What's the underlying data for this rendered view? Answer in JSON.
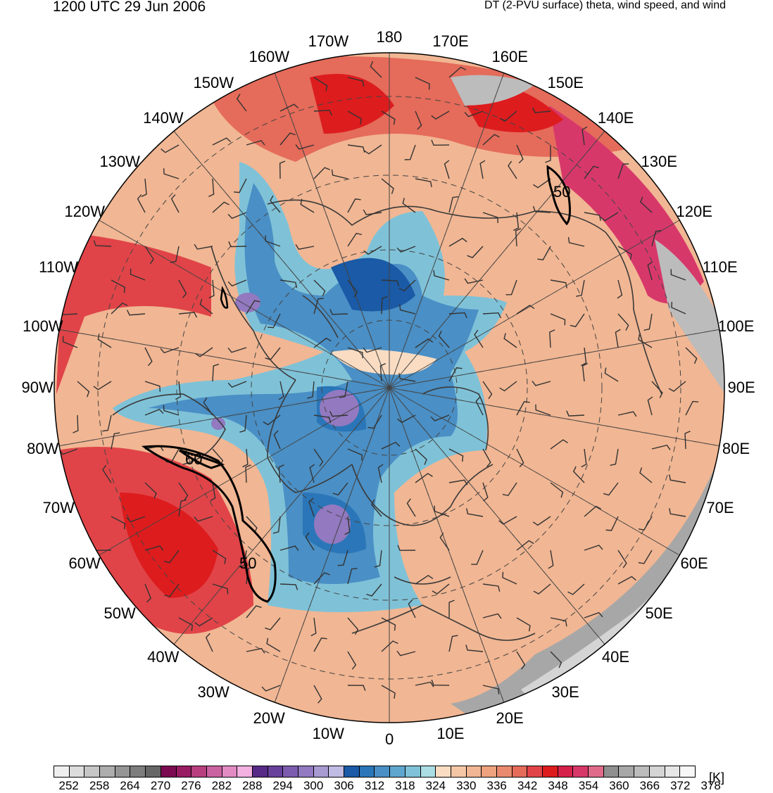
{
  "header": {
    "valid_time": "1200 UTC 29 Jun 2006",
    "field_title": "DT (2-PVU surface) theta, wind speed, and wind"
  },
  "map": {
    "projection": "north polar stereographic",
    "longitude_labels": [
      "180",
      "170E",
      "160E",
      "150E",
      "140E",
      "130E",
      "120E",
      "110E",
      "100E",
      "90E",
      "80E",
      "70E",
      "60E",
      "50E",
      "40E",
      "30E",
      "20E",
      "10E",
      "0",
      "10W",
      "20W",
      "30W",
      "40W",
      "50W",
      "60W",
      "70W",
      "80W",
      "90W",
      "100W",
      "110W",
      "120W",
      "130W",
      "140W",
      "150W",
      "160W",
      "170W"
    ],
    "wind_speed_contour_labels": [
      "50",
      "60",
      "50"
    ],
    "colors": {
      "ocean_land_fill": "#f1b693",
      "coastline": "#3a3a3a",
      "contour": "#000000"
    }
  },
  "colorbar": {
    "unit": "[K]",
    "tick_labels": [
      "252",
      "258",
      "264",
      "270",
      "276",
      "282",
      "288",
      "294",
      "300",
      "306",
      "312",
      "318",
      "324",
      "330",
      "336",
      "342",
      "348",
      "354",
      "360",
      "366",
      "372",
      "378"
    ],
    "colors": [
      "#efefef",
      "#dcdcdc",
      "#c6c6c6",
      "#adadad",
      "#959595",
      "#7d7d7d",
      "#666666",
      "#7c0c51",
      "#981d63",
      "#b73f7f",
      "#cb62a0",
      "#e28bc3",
      "#f2b1e1",
      "#562a86",
      "#67419b",
      "#7c5cae",
      "#9279c0",
      "#a89bd2",
      "#c0bbe3",
      "#1a5aa6",
      "#2a76b8",
      "#4a8fc5",
      "#5fa6cf",
      "#7fc2d8",
      "#abdde5",
      "#f9dcc2",
      "#f5c6a5",
      "#f1b693",
      "#eea27d",
      "#e98a6e",
      "#e56b5a",
      "#e04448",
      "#dd1c1e",
      "#d6224a",
      "#d7386a",
      "#df6b8a",
      "#8f8f8f",
      "#a7a7a7",
      "#bcbcbc",
      "#d4d4d4",
      "#e6e6e6",
      "#f7f7f7"
    ]
  }
}
